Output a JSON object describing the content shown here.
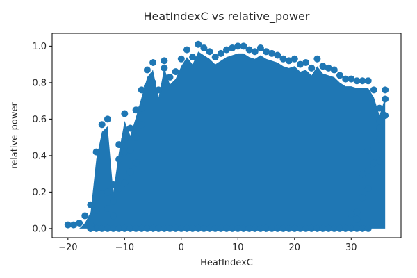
{
  "chart_data": {
    "type": "scatter",
    "title": "HeatIndexC vs relative_power",
    "xlabel": "HeatIndexC",
    "ylabel": "relative_power",
    "xlim": [
      -22.8,
      38.8
    ],
    "ylim": [
      -0.05,
      1.07
    ],
    "xticks": [
      -20,
      -10,
      0,
      10,
      20,
      30
    ],
    "yticks": [
      0.0,
      0.2,
      0.4,
      0.6,
      0.8,
      1.0
    ],
    "xtick_labels": [
      "−20",
      "−10",
      "0",
      "10",
      "20",
      "30"
    ],
    "ytick_labels": [
      "0.0",
      "0.2",
      "0.4",
      "0.6",
      "0.8",
      "1.0"
    ],
    "grid": false,
    "legend": "none",
    "marker_color": "#1f77b4",
    "series": [
      {
        "points": [
          [
            -20,
            0.02
          ],
          [
            -19,
            0.02
          ],
          [
            -18,
            0.03
          ],
          [
            -17,
            0.07
          ],
          [
            -16,
            0.13
          ],
          [
            -16,
            0.02
          ],
          [
            -16,
            0.0
          ],
          [
            -15,
            0.17
          ],
          [
            -15,
            0.1
          ],
          [
            -15,
            0.42
          ],
          [
            -14,
            0.19
          ],
          [
            -14,
            0.57
          ],
          [
            -13,
            0.2
          ],
          [
            -13,
            0.6
          ],
          [
            -13,
            0.11
          ],
          [
            -12,
            0.24
          ],
          [
            -12,
            0.15
          ],
          [
            -12,
            0.07
          ],
          [
            -11,
            0.46
          ],
          [
            -11,
            0.38
          ],
          [
            -11,
            0.22
          ],
          [
            -10,
            0.63
          ],
          [
            -10,
            0.49
          ],
          [
            -10,
            0.25
          ],
          [
            -10,
            0.42
          ],
          [
            -9,
            0.55
          ],
          [
            -9,
            0.31
          ],
          [
            -9,
            0.43
          ],
          [
            -8,
            0.65
          ],
          [
            -8,
            0.5
          ],
          [
            -8,
            0.36
          ],
          [
            -7,
            0.76
          ],
          [
            -7,
            0.66
          ],
          [
            -7,
            0.57
          ],
          [
            -6,
            0.87
          ],
          [
            -6,
            0.78
          ],
          [
            -5,
            0.91
          ],
          [
            -5,
            0.8
          ],
          [
            -4,
            0.76
          ],
          [
            -3,
            0.92
          ],
          [
            -3,
            0.88
          ],
          [
            -2,
            0.83
          ],
          [
            -1,
            0.86
          ],
          [
            0,
            0.93
          ],
          [
            1,
            0.98
          ],
          [
            2,
            0.94
          ],
          [
            3,
            1.01
          ],
          [
            4,
            0.99
          ],
          [
            5,
            0.97
          ],
          [
            6,
            0.94
          ],
          [
            7,
            0.96
          ],
          [
            8,
            0.98
          ],
          [
            9,
            0.99
          ],
          [
            10,
            1.0
          ],
          [
            11,
            1.0
          ],
          [
            12,
            0.98
          ],
          [
            13,
            0.97
          ],
          [
            14,
            0.99
          ],
          [
            15,
            0.97
          ],
          [
            16,
            0.96
          ],
          [
            17,
            0.95
          ],
          [
            18,
            0.93
          ],
          [
            19,
            0.92
          ],
          [
            20,
            0.93
          ],
          [
            21,
            0.9
          ],
          [
            22,
            0.91
          ],
          [
            23,
            0.88
          ],
          [
            24,
            0.93
          ],
          [
            25,
            0.89
          ],
          [
            26,
            0.88
          ],
          [
            27,
            0.87
          ],
          [
            28,
            0.84
          ],
          [
            29,
            0.82
          ],
          [
            30,
            0.82
          ],
          [
            31,
            0.81
          ],
          [
            32,
            0.81
          ],
          [
            33,
            0.81
          ],
          [
            34,
            0.76
          ],
          [
            35,
            0.66
          ],
          [
            36,
            0.76
          ],
          [
            36,
            0.71
          ],
          [
            36,
            0.62
          ],
          [
            35,
            0.59
          ],
          [
            35,
            0.55
          ],
          [
            35,
            0.49
          ],
          [
            35,
            0.37
          ],
          [
            34,
            0.36
          ],
          [
            33,
            0.43
          ],
          [
            33,
            0.32
          ],
          [
            33,
            0.22
          ],
          [
            32,
            0.17
          ],
          [
            31,
            0.09
          ],
          [
            31,
            0.05
          ],
          [
            30,
            0.08
          ],
          [
            32,
            0.3
          ]
        ]
      }
    ]
  }
}
